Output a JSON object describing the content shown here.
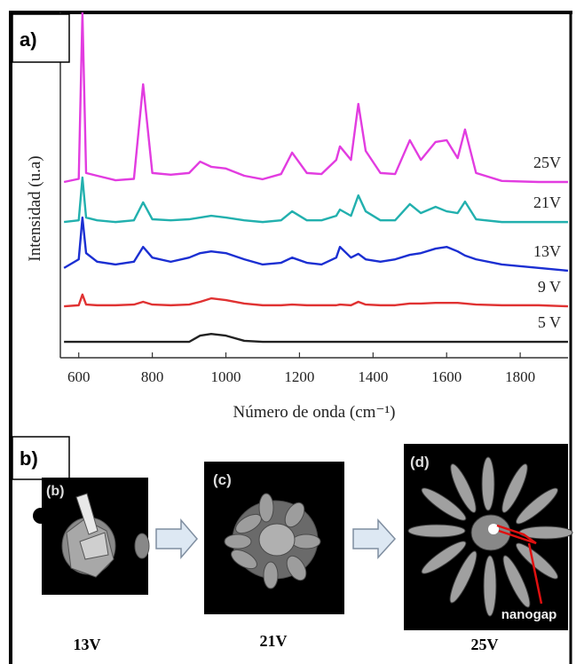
{
  "chart_data": {
    "type": "line",
    "xlabel": "Número de onda (cm⁻¹)",
    "ylabel": "Intensidad (u.a)",
    "x": [
      560,
      600,
      610,
      620,
      650,
      700,
      750,
      775,
      800,
      850,
      900,
      930,
      960,
      1000,
      1050,
      1100,
      1150,
      1180,
      1220,
      1260,
      1300,
      1310,
      1340,
      1360,
      1380,
      1420,
      1460,
      1500,
      1530,
      1570,
      1600,
      1630,
      1650,
      1680,
      1750,
      1850,
      1930
    ],
    "xlim": [
      550,
      1930
    ],
    "xticks": [
      600,
      800,
      1000,
      1200,
      1400,
      1600,
      1800
    ],
    "ylim": [
      0,
      100
    ],
    "series": [
      {
        "name": "25V",
        "color": "#e23ce0",
        "values": [
          50.9,
          51.8,
          100,
          53.5,
          52.7,
          51.4,
          51.8,
          79.2,
          53.5,
          53.0,
          53.5,
          56.8,
          55.3,
          54.8,
          52.7,
          51.7,
          53.2,
          59.4,
          53.5,
          53.2,
          57.3,
          61.2,
          57.3,
          73.5,
          59.9,
          53.5,
          53.2,
          63.0,
          57.3,
          62.5,
          63.0,
          57.8,
          66.1,
          53.5,
          51.2,
          50.9,
          50.9
        ]
      },
      {
        "name": "21V",
        "color": "#22b0ae",
        "values": [
          39.3,
          39.8,
          52.2,
          40.6,
          39.8,
          39.3,
          39.8,
          45.0,
          40.1,
          39.8,
          40.1,
          40.6,
          41.1,
          40.6,
          39.8,
          39.3,
          39.8,
          42.4,
          39.8,
          39.8,
          41.1,
          42.9,
          41.1,
          47.0,
          42.4,
          39.8,
          39.8,
          44.5,
          41.9,
          43.7,
          42.4,
          41.9,
          45.2,
          40.1,
          39.3,
          39.3,
          39.3
        ]
      },
      {
        "name": "13V",
        "color": "#1b2fd2",
        "values": [
          26.0,
          28.5,
          40.6,
          30.3,
          27.8,
          27.0,
          27.8,
          32.1,
          29.0,
          27.8,
          29.0,
          30.3,
          30.8,
          30.3,
          28.5,
          27.0,
          27.5,
          29.0,
          27.5,
          27.0,
          29.0,
          32.1,
          29.0,
          30.1,
          28.5,
          27.8,
          28.5,
          29.8,
          30.3,
          31.6,
          32.1,
          30.8,
          29.6,
          28.5,
          27.0,
          26.0,
          25.2
        ]
      },
      {
        "name": "9 V",
        "color": "#e03232",
        "values": [
          14.9,
          15.2,
          18.3,
          15.4,
          15.2,
          15.2,
          15.4,
          16.2,
          15.4,
          15.2,
          15.4,
          16.2,
          17.2,
          16.7,
          15.7,
          15.2,
          15.2,
          15.4,
          15.2,
          15.2,
          15.2,
          15.4,
          15.2,
          16.2,
          15.4,
          15.2,
          15.2,
          15.7,
          15.7,
          15.9,
          15.9,
          15.9,
          15.7,
          15.4,
          15.2,
          15.2,
          14.9
        ]
      },
      {
        "name": "5 V",
        "color": "#222222",
        "values": [
          4.6,
          4.6,
          4.6,
          4.6,
          4.6,
          4.6,
          4.6,
          4.6,
          4.6,
          4.6,
          4.6,
          6.4,
          6.9,
          6.4,
          4.9,
          4.6,
          4.6,
          4.6,
          4.6,
          4.6,
          4.6,
          4.6,
          4.6,
          4.6,
          4.6,
          4.6,
          4.6,
          4.6,
          4.6,
          4.6,
          4.6,
          4.6,
          4.6,
          4.6,
          4.6,
          4.6,
          4.6
        ]
      }
    ]
  },
  "panel_labels": [
    "a)",
    "b)"
  ],
  "images": [
    {
      "label": "(b)",
      "caption": "13V"
    },
    {
      "label": "(c)",
      "caption": "21V"
    },
    {
      "label": "(d)",
      "caption": "25V"
    }
  ],
  "annotation": "nanogap"
}
